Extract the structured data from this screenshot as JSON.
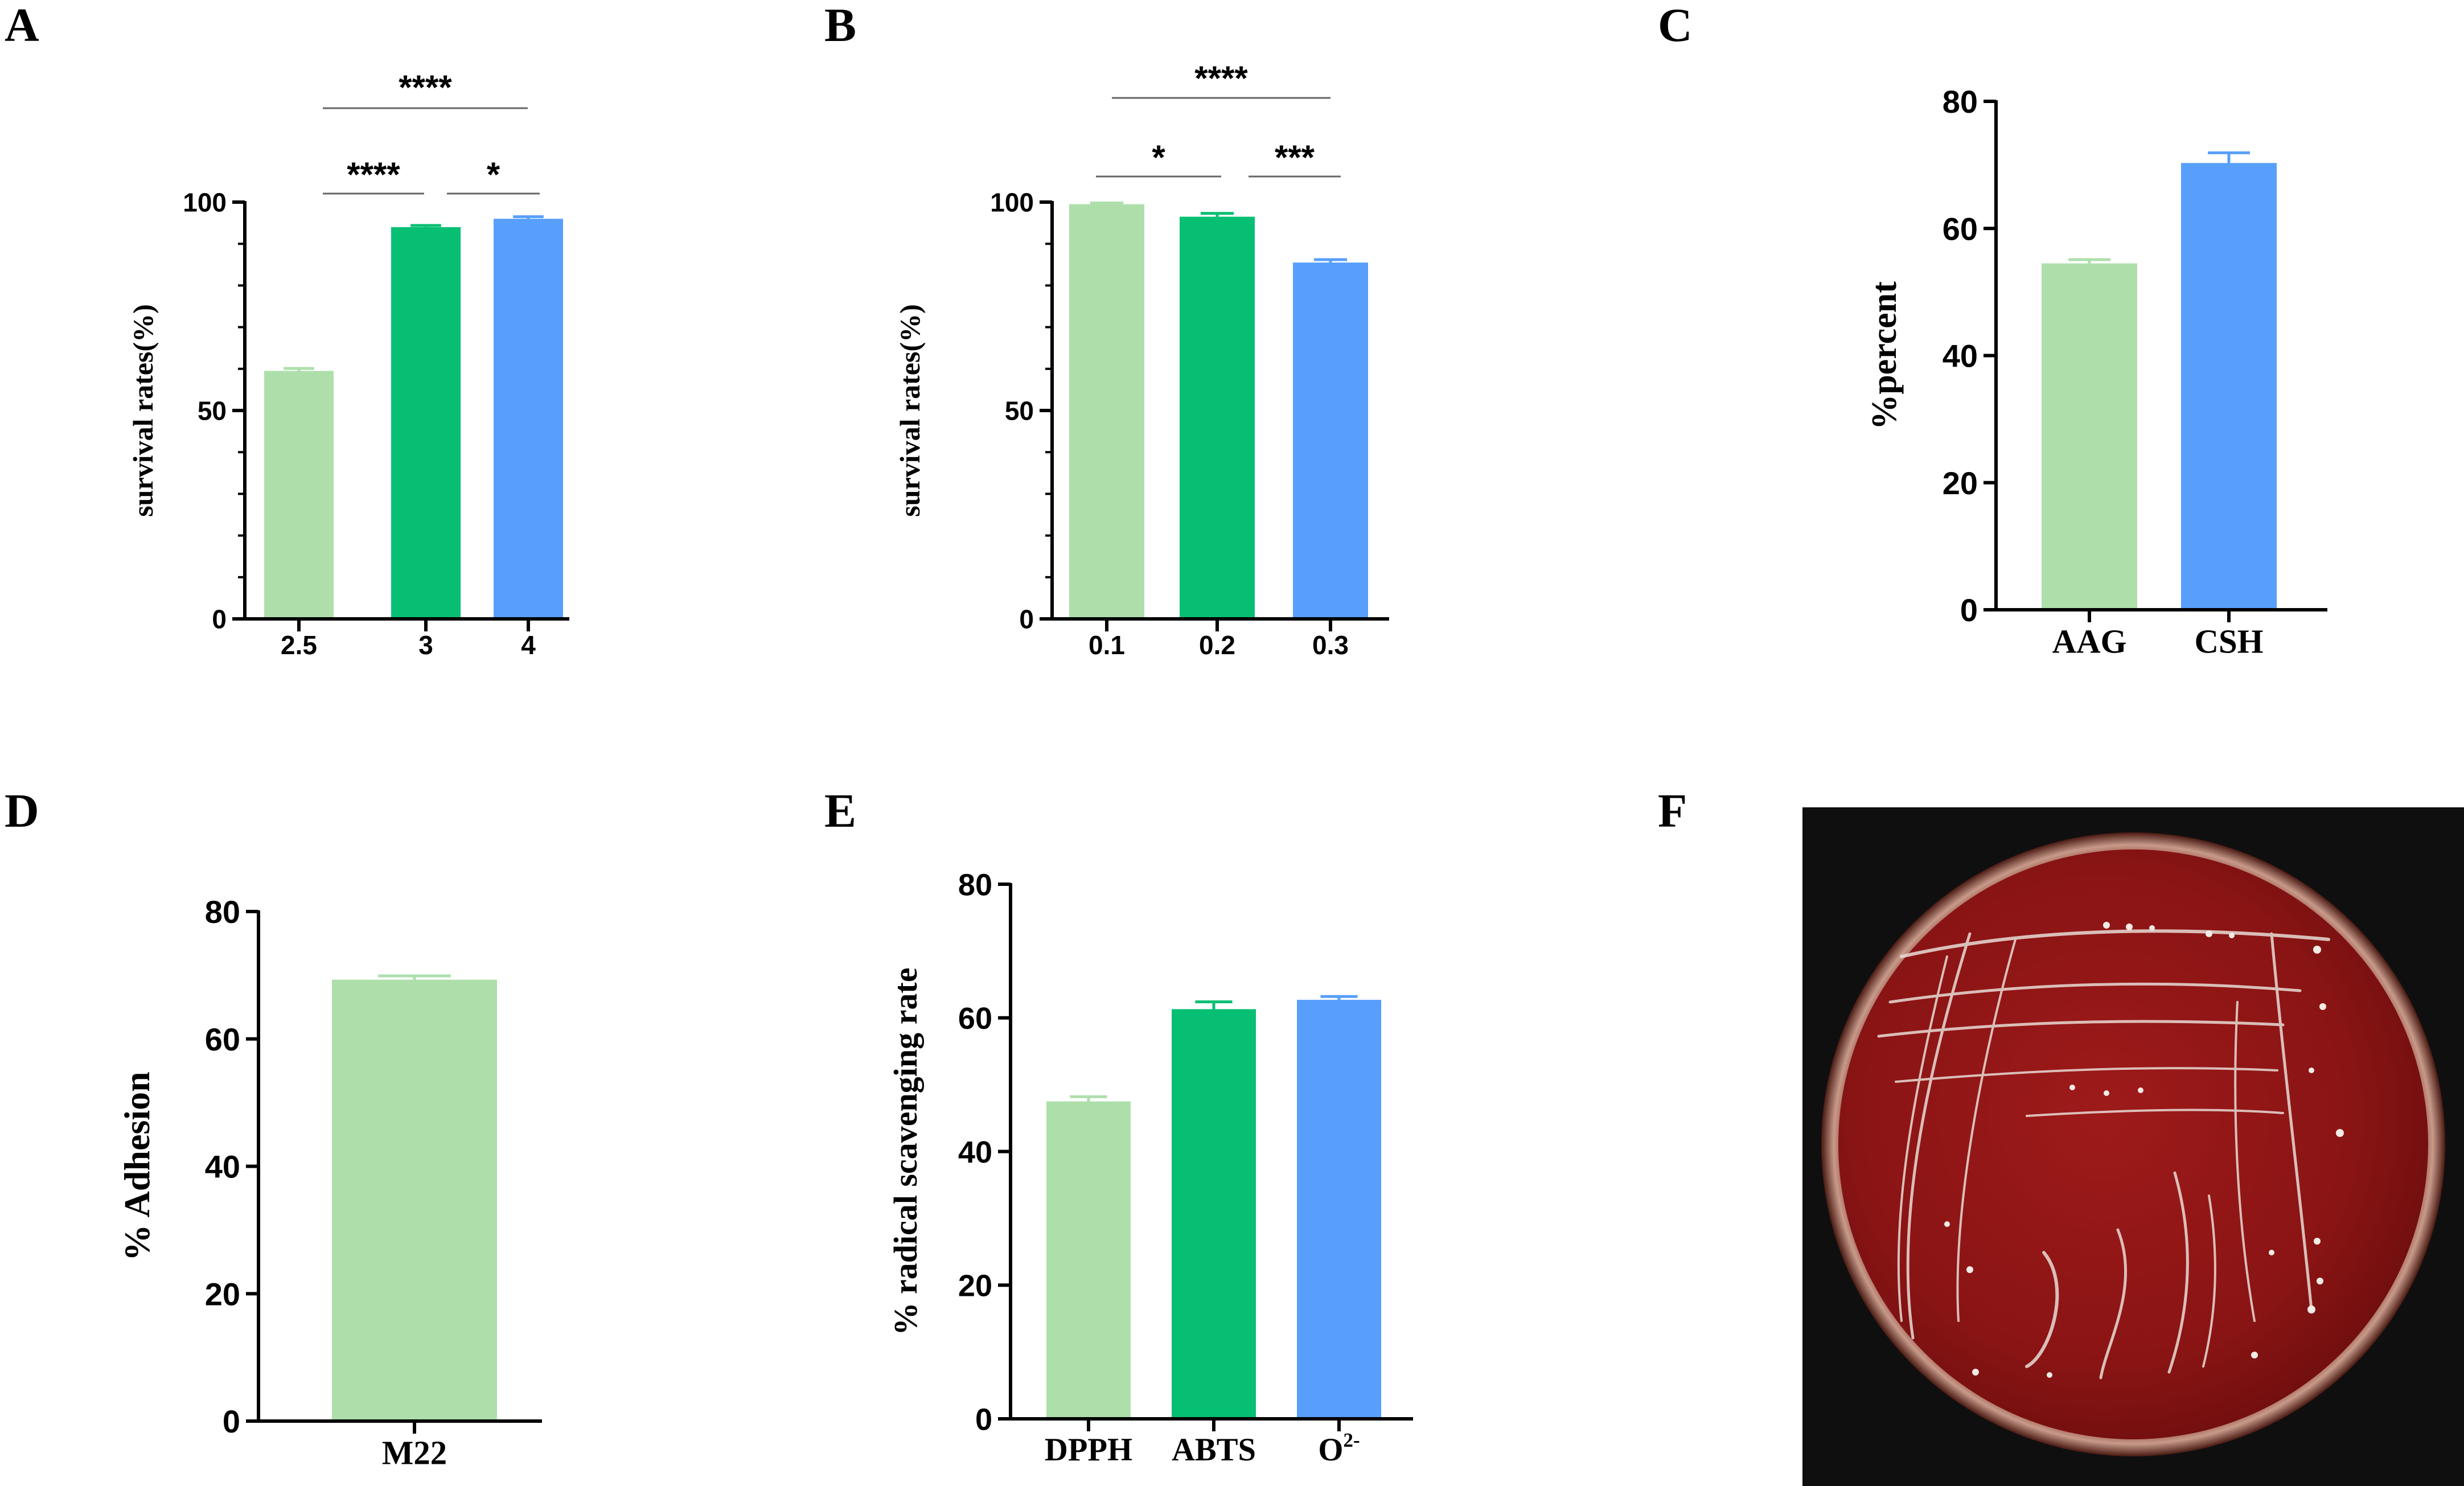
{
  "colors": {
    "light_green": "#aedfab",
    "green": "#06bf73",
    "blue": "#579ffb",
    "axis": "#000000",
    "bracket": "#666666"
  },
  "chart_data": [
    {
      "panel": "A",
      "type": "bar",
      "categories": [
        "2.5",
        "3",
        "4"
      ],
      "values": [
        59.5,
        94,
        96
      ],
      "errors": [
        0.6,
        0.4,
        0.5
      ],
      "bar_colors": [
        "light_green",
        "green",
        "blue"
      ],
      "ylabel": "survival rates(%)",
      "ylim": [
        0,
        100
      ],
      "yticks": [
        0,
        50,
        100
      ],
      "minor_ticks": 10,
      "significance": [
        {
          "from": 0,
          "to": 2,
          "label": "****"
        },
        {
          "from": 0,
          "to": 1,
          "label": "****"
        },
        {
          "from": 1,
          "to": 2,
          "label": "*"
        }
      ]
    },
    {
      "panel": "B",
      "type": "bar",
      "categories": [
        "0.1",
        "0.2",
        "0.3"
      ],
      "values": [
        99.5,
        96.5,
        85.5
      ],
      "errors": [
        0.3,
        0.8,
        0.7
      ],
      "bar_colors": [
        "light_green",
        "green",
        "blue"
      ],
      "ylabel": "survival rates(%)",
      "ylim": [
        0,
        100
      ],
      "yticks": [
        0,
        50,
        100
      ],
      "minor_ticks": 10,
      "significance": [
        {
          "from": 0,
          "to": 2,
          "label": "****"
        },
        {
          "from": 0,
          "to": 1,
          "label": "*"
        },
        {
          "from": 1,
          "to": 2,
          "label": "***"
        }
      ]
    },
    {
      "panel": "C",
      "type": "bar",
      "categories": [
        "AAG",
        "CSH"
      ],
      "values": [
        54.5,
        70.3
      ],
      "errors": [
        0.6,
        1.6
      ],
      "bar_colors": [
        "light_green",
        "blue"
      ],
      "ylabel": "%percent",
      "ylim": [
        0,
        80
      ],
      "yticks": [
        0,
        20,
        40,
        60,
        80
      ]
    },
    {
      "panel": "D",
      "type": "bar",
      "categories": [
        "M22"
      ],
      "values": [
        69.3
      ],
      "errors": [
        0.6
      ],
      "bar_colors": [
        "light_green"
      ],
      "ylabel": "% Adhesion",
      "ylim": [
        0,
        80
      ],
      "yticks": [
        0,
        20,
        40,
        60,
        80
      ]
    },
    {
      "panel": "E",
      "type": "bar",
      "categories": [
        "DPPH",
        "ABTS",
        "O2-"
      ],
      "values": [
        47.5,
        61.3,
        62.7
      ],
      "errors": [
        0.7,
        1.1,
        0.5
      ],
      "bar_colors": [
        "light_green",
        "green",
        "blue"
      ],
      "ylabel": "% radical scavenging rate",
      "ylim": [
        0,
        80
      ],
      "yticks": [
        0,
        20,
        40,
        60,
        80
      ]
    }
  ],
  "photo_panel": {
    "panel": "F",
    "icon": "petri-dish-photo"
  }
}
